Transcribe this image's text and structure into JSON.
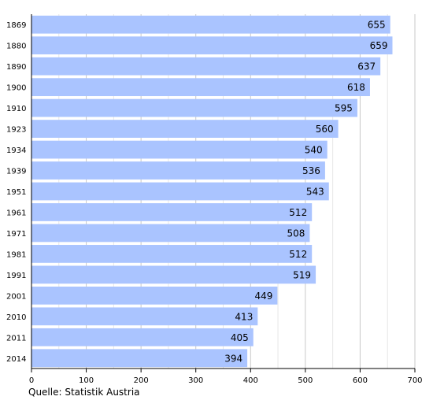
{
  "chart_data": {
    "type": "bar",
    "orientation": "horizontal",
    "categories": [
      "1869",
      "1880",
      "1890",
      "1900",
      "1910",
      "1923",
      "1934",
      "1939",
      "1951",
      "1961",
      "1971",
      "1981",
      "1991",
      "2001",
      "2010",
      "2011",
      "2014"
    ],
    "values": [
      655,
      659,
      637,
      618,
      595,
      560,
      540,
      536,
      543,
      512,
      508,
      512,
      519,
      449,
      413,
      405,
      394
    ],
    "xlim": [
      0,
      700
    ],
    "xticks": [
      0,
      100,
      200,
      300,
      400,
      500,
      600,
      700
    ],
    "title": "",
    "xlabel": "",
    "ylabel": "",
    "grid": "vertical",
    "bar_color": "#aac4ff",
    "legend": "none"
  },
  "source_text": "Quelle: Statistik Austria"
}
